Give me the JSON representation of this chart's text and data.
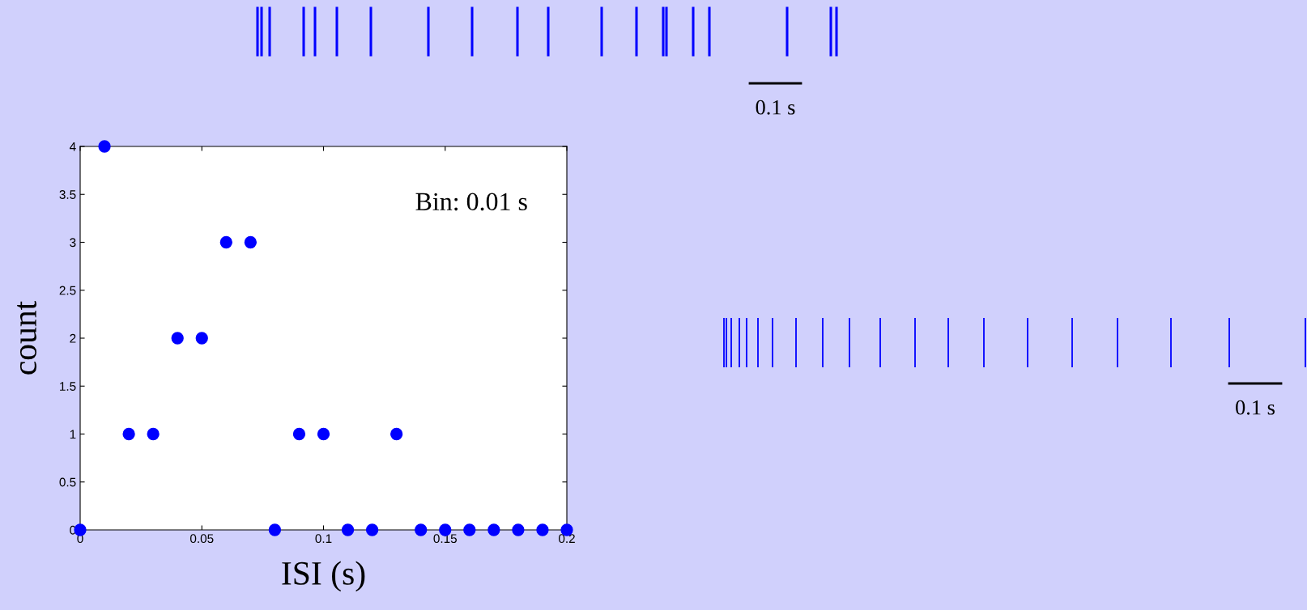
{
  "chart_data": {
    "type": "scatter",
    "xlabel": "ISI (s)",
    "ylabel": "count",
    "x": [
      0,
      0.01,
      0.02,
      0.03,
      0.04,
      0.05,
      0.06,
      0.07,
      0.08,
      0.09,
      0.1,
      0.11,
      0.12,
      0.13,
      0.14,
      0.15,
      0.16,
      0.17,
      0.18,
      0.19,
      0.2
    ],
    "values": [
      0,
      4,
      1,
      1,
      2,
      2,
      3,
      3,
      0,
      1,
      1,
      0,
      0,
      1,
      0,
      0,
      0,
      0,
      0,
      0,
      0
    ],
    "color": "#0000ff",
    "marker": "circle",
    "xlim": [
      0,
      0.2
    ],
    "xticks": [
      0,
      0.05,
      0.1,
      0.15,
      0.2
    ],
    "ylim": [
      0,
      4
    ],
    "yticks": [
      0,
      0.5,
      1,
      1.5,
      2,
      2.5,
      3,
      3.5,
      4
    ],
    "grid": false,
    "legend": false,
    "annotations": [
      "Bin: 0.01 s",
      "0.1 s",
      "0.1 s"
    ]
  }
}
